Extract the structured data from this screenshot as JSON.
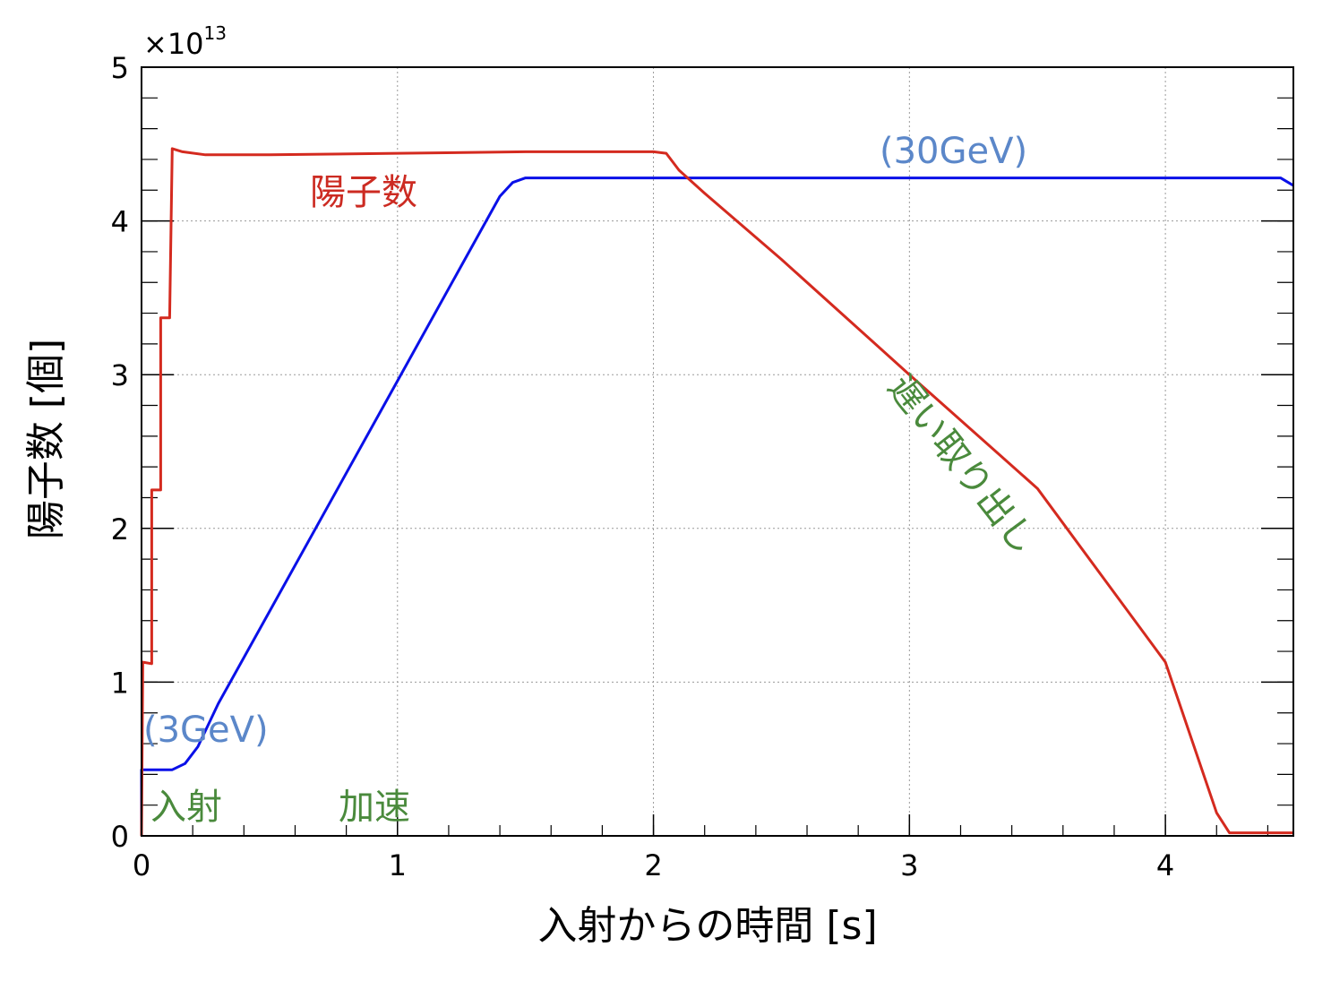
{
  "chart_data": {
    "type": "line",
    "xlabel": "入射からの時間 [s]",
    "ylabel": "陽子数 [個]",
    "y_multiplier": "×10",
    "y_multiplier_exponent": "13",
    "xlim": [
      0,
      4.5
    ],
    "ylim": [
      0,
      5
    ],
    "x_major_ticks": [
      0,
      1,
      2,
      3,
      4
    ],
    "y_major_ticks": [
      0,
      1,
      2,
      3,
      4,
      5
    ],
    "x_tick_labels": [
      "0",
      "1",
      "2",
      "3",
      "4"
    ],
    "y_tick_labels": [
      "0",
      "1",
      "2",
      "3",
      "4",
      "5"
    ],
    "grid": true,
    "series": [
      {
        "name": "陽子数",
        "color": "#d42a1f",
        "points": [
          [
            0,
            0
          ],
          [
            0.005,
            1.13
          ],
          [
            0.04,
            1.12
          ],
          [
            0.04,
            2.25
          ],
          [
            0.075,
            2.25
          ],
          [
            0.075,
            3.37
          ],
          [
            0.11,
            3.37
          ],
          [
            0.12,
            4.47
          ],
          [
            0.16,
            4.45
          ],
          [
            0.25,
            4.43
          ],
          [
            0.5,
            4.43
          ],
          [
            1.0,
            4.44
          ],
          [
            1.5,
            4.45
          ],
          [
            2.0,
            4.45
          ],
          [
            2.05,
            4.44
          ],
          [
            2.1,
            4.33
          ],
          [
            2.2,
            4.18
          ],
          [
            2.5,
            3.75
          ],
          [
            3.0,
            3.0
          ],
          [
            3.5,
            2.26
          ],
          [
            4.0,
            1.13
          ],
          [
            4.2,
            0.15
          ],
          [
            4.25,
            0.02
          ],
          [
            4.5,
            0.02
          ]
        ]
      },
      {
        "name": "(3GeV)→(30GeV)",
        "color": "#0a10e8",
        "points": [
          [
            0,
            0
          ],
          [
            0.0,
            0.43
          ],
          [
            0.12,
            0.43
          ],
          [
            0.17,
            0.47
          ],
          [
            0.22,
            0.58
          ],
          [
            0.3,
            0.86
          ],
          [
            0.5,
            1.46
          ],
          [
            1.0,
            2.96
          ],
          [
            1.3,
            3.86
          ],
          [
            1.4,
            4.16
          ],
          [
            1.45,
            4.25
          ],
          [
            1.5,
            4.28
          ],
          [
            2.0,
            4.28
          ],
          [
            3.0,
            4.28
          ],
          [
            4.0,
            4.28
          ],
          [
            4.45,
            4.28
          ],
          [
            4.5,
            4.23
          ]
        ]
      }
    ],
    "annotations": {
      "protons": "陽子数",
      "energy_low": "(3GeV)",
      "energy_high": "(30GeV)",
      "injection": "入射",
      "acceleration": "加速",
      "extraction": "遅い取り出し"
    },
    "annotation_colors": {
      "protons": "#cc2b22",
      "energy": "#5b87c9",
      "phase": "#4a8a3c"
    }
  }
}
